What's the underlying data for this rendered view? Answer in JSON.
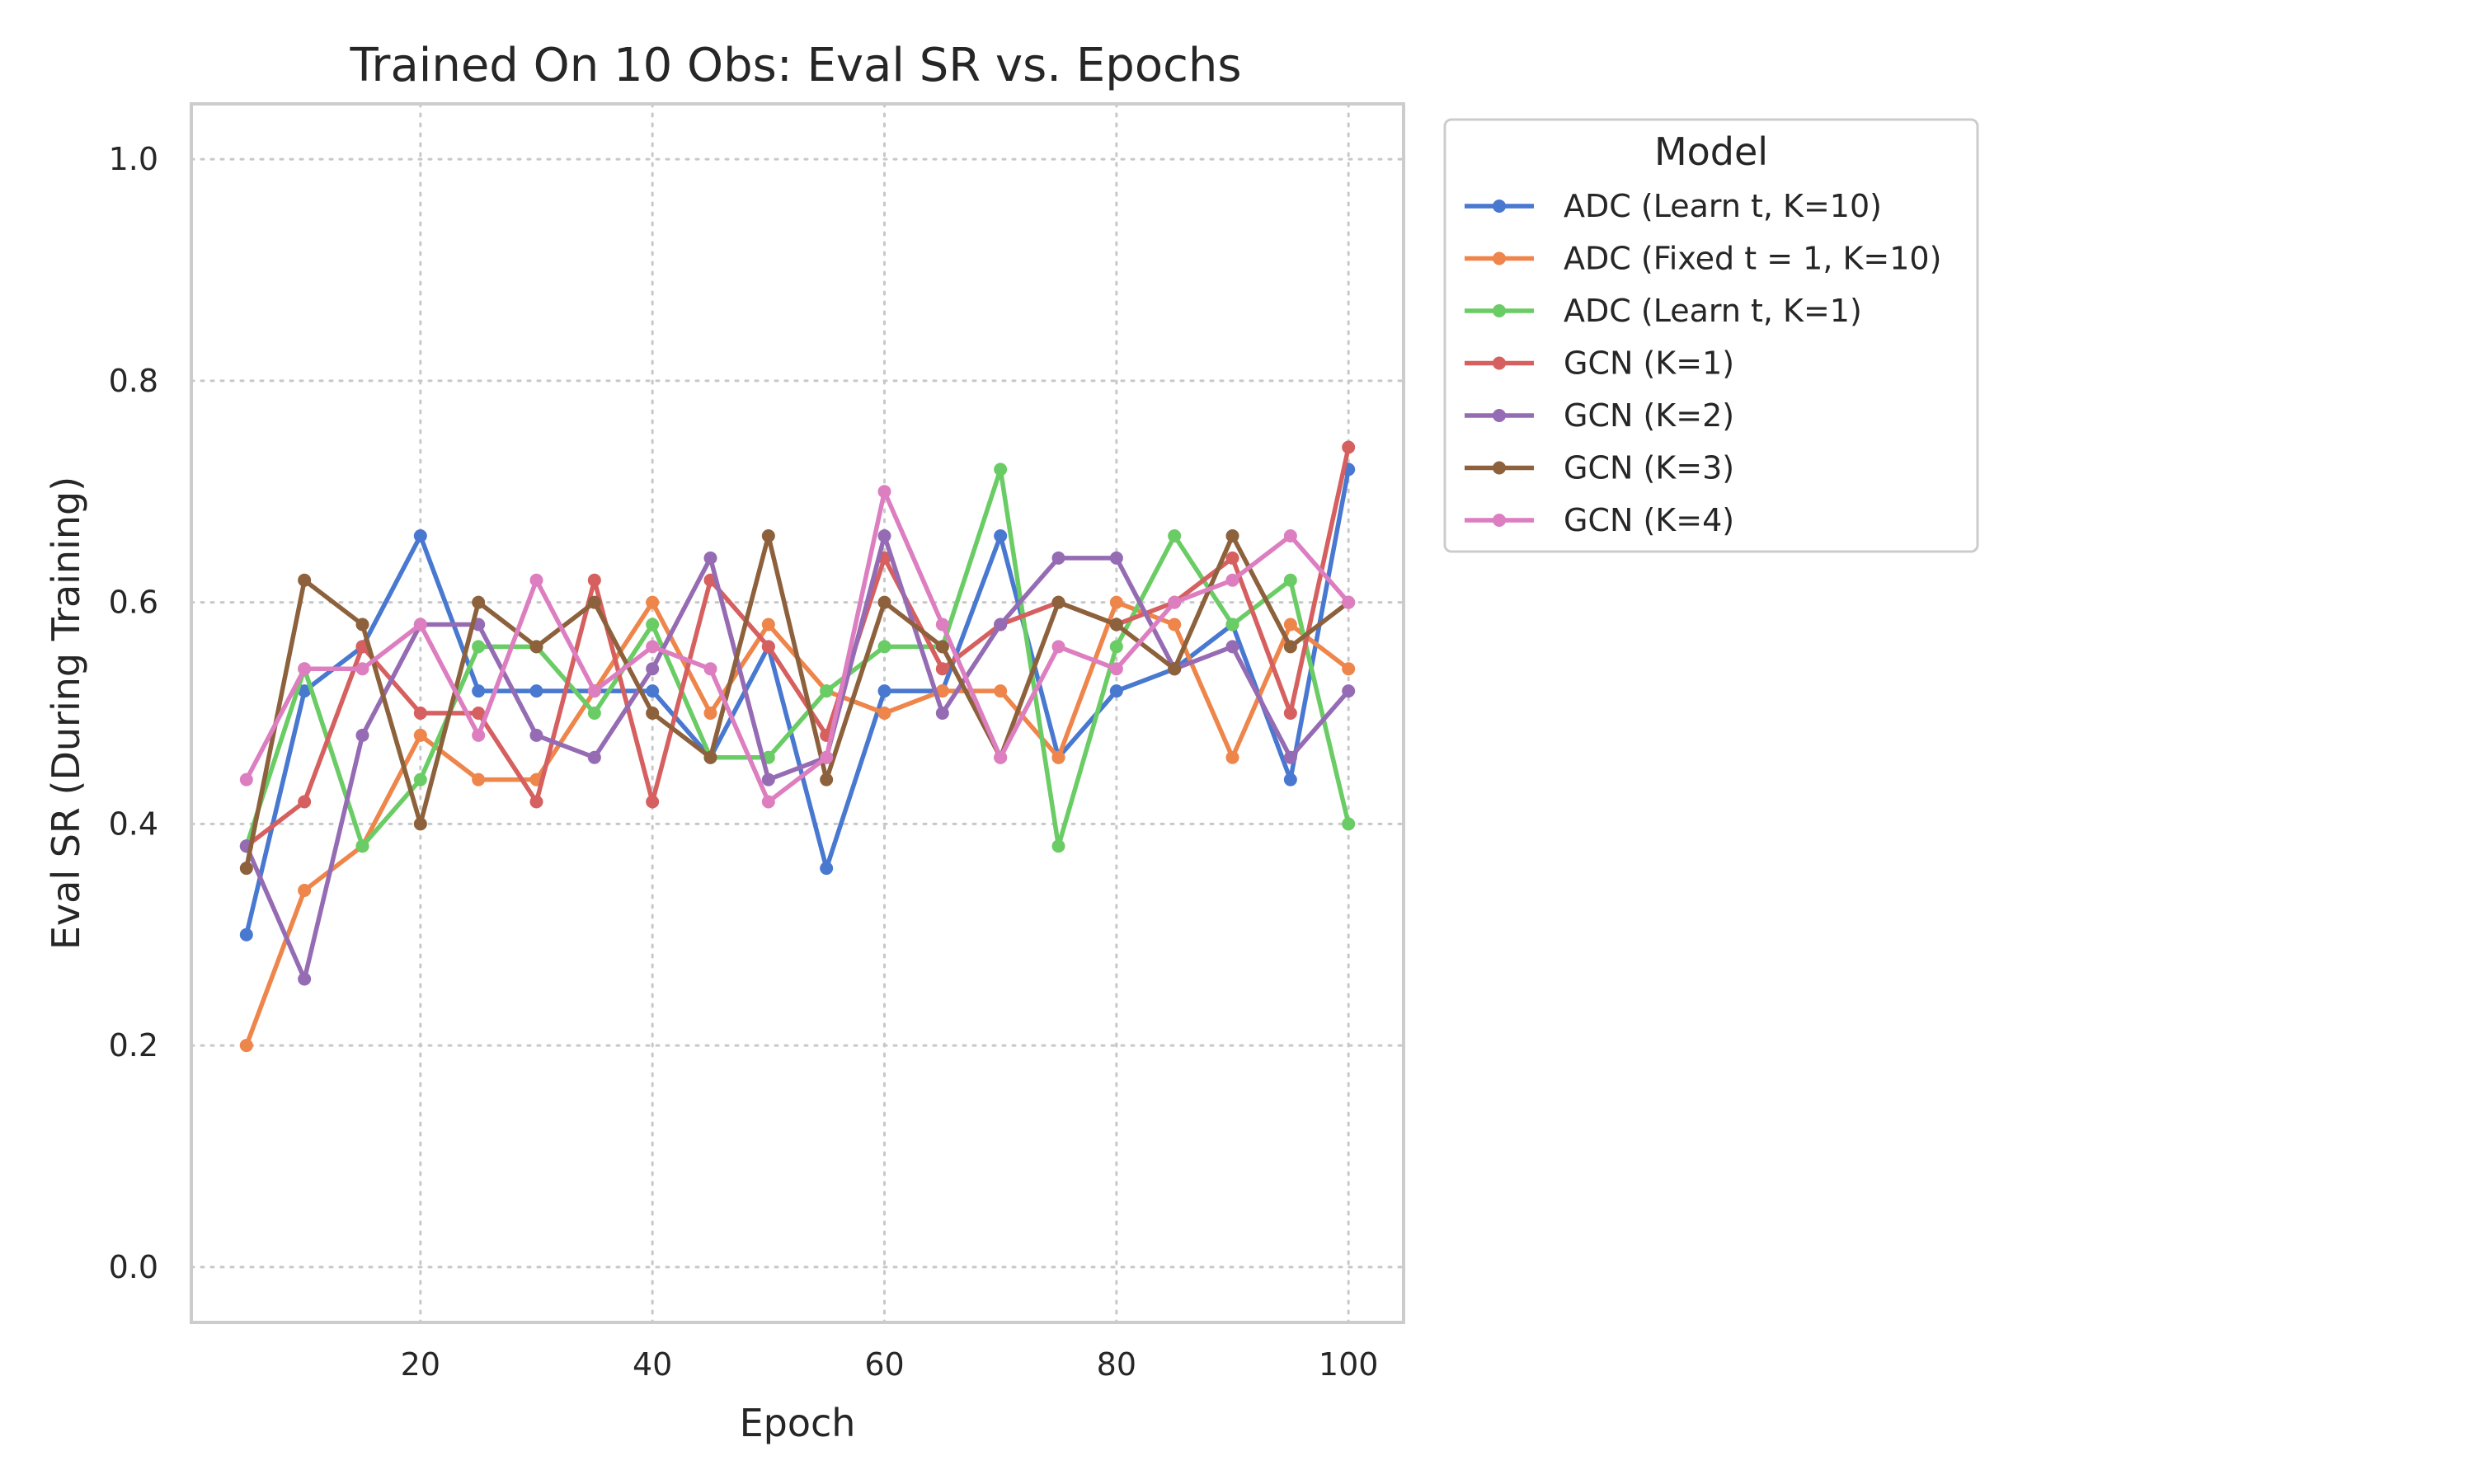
{
  "chart_data": {
    "type": "line",
    "title": "Trained On 10 Obs: Eval SR vs. Epochs",
    "xlabel": "Epoch",
    "ylabel": "Eval SR (During Training)",
    "xlim": [
      0.25,
      104.75
    ],
    "ylim": [
      -0.05,
      1.05
    ],
    "xticks": [
      20,
      40,
      60,
      80,
      100
    ],
    "yticks": [
      0.0,
      0.2,
      0.4,
      0.6,
      0.8,
      1.0
    ],
    "ytick_labels": [
      "0.0",
      "0.2",
      "0.4",
      "0.6",
      "0.8",
      "1.0"
    ],
    "grid": true,
    "legend": {
      "title": "Model",
      "placement": "outside upper right"
    },
    "x": [
      5,
      10,
      15,
      20,
      25,
      30,
      35,
      40,
      45,
      50,
      55,
      60,
      65,
      70,
      75,
      80,
      85,
      90,
      95,
      100
    ],
    "series": [
      {
        "name": "ADC (Learn t, K=10)",
        "color": "#4878d0",
        "values": [
          0.3,
          0.52,
          0.56,
          0.66,
          0.52,
          0.52,
          0.52,
          0.52,
          0.46,
          0.56,
          0.36,
          0.52,
          0.52,
          0.66,
          0.46,
          0.52,
          0.54,
          0.58,
          0.44,
          0.72
        ]
      },
      {
        "name": "ADC (Fixed t = 1, K=10)",
        "color": "#ee854a",
        "values": [
          0.2,
          0.34,
          0.38,
          0.48,
          0.44,
          0.44,
          0.52,
          0.6,
          0.5,
          0.58,
          0.52,
          0.5,
          0.52,
          0.52,
          0.46,
          0.6,
          0.58,
          0.46,
          0.58,
          0.54
        ]
      },
      {
        "name": "ADC (Learn t, K=1)",
        "color": "#6acc64",
        "values": [
          0.38,
          0.54,
          0.38,
          0.44,
          0.56,
          0.56,
          0.5,
          0.58,
          0.46,
          0.46,
          0.52,
          0.56,
          0.56,
          0.72,
          0.38,
          0.56,
          0.66,
          0.58,
          0.62,
          0.4
        ]
      },
      {
        "name": "GCN (K=1)",
        "color": "#d65f5f",
        "values": [
          0.38,
          0.42,
          0.56,
          0.5,
          0.5,
          0.42,
          0.62,
          0.42,
          0.62,
          0.56,
          0.48,
          0.64,
          0.54,
          0.58,
          0.6,
          0.58,
          0.6,
          0.64,
          0.5,
          0.74
        ]
      },
      {
        "name": "GCN (K=2)",
        "color": "#956cb4",
        "values": [
          0.38,
          0.26,
          0.48,
          0.58,
          0.58,
          0.48,
          0.46,
          0.54,
          0.64,
          0.44,
          0.46,
          0.66,
          0.5,
          0.58,
          0.64,
          0.64,
          0.54,
          0.56,
          0.46,
          0.52
        ]
      },
      {
        "name": "GCN (K=3)",
        "color": "#8c613c",
        "values": [
          0.36,
          0.62,
          0.58,
          0.4,
          0.6,
          0.56,
          0.6,
          0.5,
          0.46,
          0.66,
          0.44,
          0.6,
          0.56,
          0.46,
          0.6,
          0.58,
          0.54,
          0.66,
          0.56,
          0.6
        ]
      },
      {
        "name": "GCN (K=4)",
        "color": "#dc7ec0",
        "values": [
          0.44,
          0.54,
          0.54,
          0.58,
          0.48,
          0.62,
          0.52,
          0.56,
          0.54,
          0.42,
          0.46,
          0.7,
          0.58,
          0.46,
          0.56,
          0.54,
          0.6,
          0.62,
          0.66,
          0.6
        ]
      }
    ]
  }
}
